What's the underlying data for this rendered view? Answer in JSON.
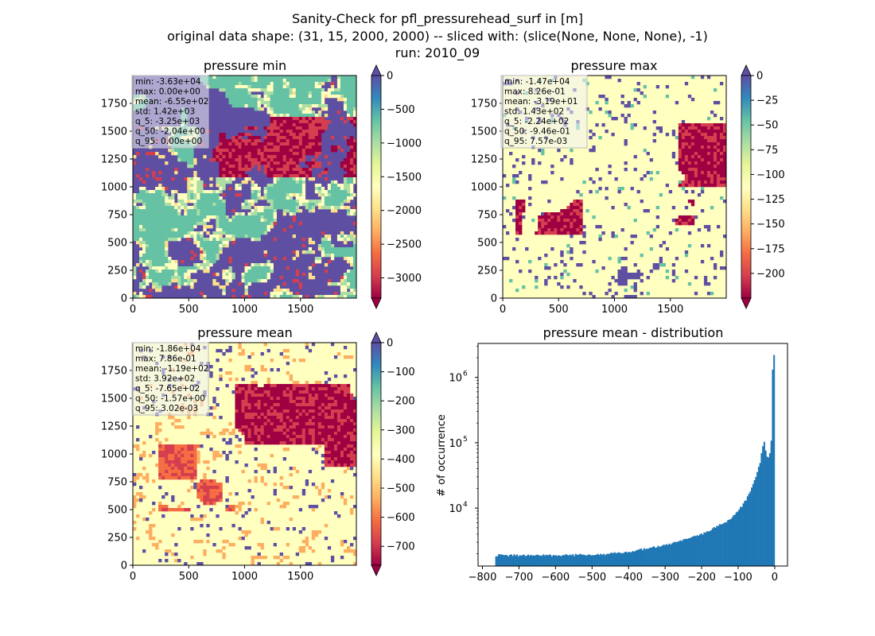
{
  "figure": {
    "title_lines": [
      "Sanity-Check for pfl_pressurehead_surf in [m]",
      "original data shape: (31, 15, 2000, 2000) -- sliced with: (slice(None, None, None), -1)",
      "run: 2010_09"
    ]
  },
  "colors": {
    "spectral": [
      "#9e0142",
      "#d53e4f",
      "#f46d43",
      "#fdae61",
      "#fee08b",
      "#ffffbf",
      "#e6f598",
      "#abdda4",
      "#66c2a5",
      "#3288bd",
      "#5e4fa2"
    ],
    "hist_bar": "#1f77b4"
  },
  "chart_data": [
    {
      "type": "heatmap",
      "name": "pressure-min",
      "title": "pressure min",
      "xlim": [
        0,
        2000
      ],
      "ylim": [
        0,
        2000
      ],
      "xticks": [
        0,
        500,
        1000,
        1500
      ],
      "yticks": [
        0,
        250,
        500,
        750,
        1000,
        1250,
        1500,
        1750
      ],
      "colorbar": {
        "vmin": -3300,
        "vmax": 0,
        "ticks": [
          0,
          -500,
          -1000,
          -1500,
          -2000,
          -2500,
          -3000
        ],
        "extend": "both"
      },
      "stats": [
        "min: -3.63e+04",
        "max: 0.00e+00",
        "mean: -6.55e+02",
        "std: 1.42e+03",
        "q_5: -3.25e+03",
        "q_50: -2.04e+00",
        "q_95: 0.00e+00"
      ]
    },
    {
      "type": "heatmap",
      "name": "pressure-max",
      "title": "pressure max",
      "xlim": [
        0,
        2000
      ],
      "ylim": [
        0,
        2000
      ],
      "xticks": [
        0,
        500,
        1000,
        1500
      ],
      "yticks": [
        0,
        250,
        500,
        750,
        1000,
        1250,
        1500,
        1750
      ],
      "colorbar": {
        "vmin": -225,
        "vmax": 0,
        "ticks": [
          0,
          -25,
          -50,
          -75,
          -100,
          -125,
          -150,
          -175,
          -200
        ],
        "extend": "both"
      },
      "stats": [
        "min: -1.47e+04",
        "max: 8.26e-01",
        "mean: -3.19e+01",
        "std: 1.43e+02",
        "q_5: -2.24e+02",
        "q_50: -9.46e-01",
        "q_95: 7.57e-03"
      ]
    },
    {
      "type": "heatmap",
      "name": "pressure-mean",
      "title": "pressure mean",
      "xlim": [
        0,
        2000
      ],
      "ylim": [
        0,
        2000
      ],
      "xticks": [
        0,
        500,
        1000,
        1500
      ],
      "yticks": [
        0,
        250,
        500,
        750,
        1000,
        1250,
        1500,
        1750
      ],
      "colorbar": {
        "vmin": -765,
        "vmax": 0,
        "ticks": [
          0,
          -100,
          -200,
          -300,
          -400,
          -500,
          -600,
          -700
        ],
        "extend": "both"
      },
      "stats": [
        "min: -1.86e+04",
        "max: 7.86e-01",
        "mean: -1.19e+02",
        "std: 3.92e+02",
        "q_5: -7.65e+02",
        "q_50: -1.57e+00",
        "q_95: 3.02e-03"
      ]
    },
    {
      "type": "bar",
      "name": "pressure-mean-distribution",
      "title": "pressure mean - distribution",
      "ylabel": "# of occurrence",
      "yscale": "log",
      "xlim": [
        -812,
        35
      ],
      "ylim": [
        1300,
        3300000
      ],
      "xticks": [
        -800,
        -700,
        -600,
        -500,
        -400,
        -300,
        -200,
        -100,
        0
      ],
      "yticks": [
        10000,
        100000,
        1000000
      ],
      "ytick_labels": [
        [
          "10",
          "4"
        ],
        [
          "10",
          "5"
        ],
        [
          "10",
          "6"
        ]
      ],
      "bin_range": [
        -765,
        0
      ],
      "anchors": [
        [
          -765,
          1900
        ],
        [
          -700,
          1900
        ],
        [
          -600,
          1900
        ],
        [
          -500,
          1950
        ],
        [
          -450,
          2000
        ],
        [
          -400,
          2150
        ],
        [
          -350,
          2400
        ],
        [
          -300,
          2700
        ],
        [
          -250,
          3200
        ],
        [
          -200,
          4000
        ],
        [
          -150,
          5500
        ],
        [
          -120,
          7000
        ],
        [
          -100,
          9000
        ],
        [
          -80,
          13000
        ],
        [
          -60,
          22000
        ],
        [
          -50,
          32000
        ],
        [
          -40,
          50000
        ],
        [
          -30,
          110000
        ],
        [
          -20,
          55000
        ],
        [
          -10,
          80000
        ],
        [
          -5,
          2200000
        ],
        [
          0,
          2200000
        ]
      ]
    }
  ]
}
